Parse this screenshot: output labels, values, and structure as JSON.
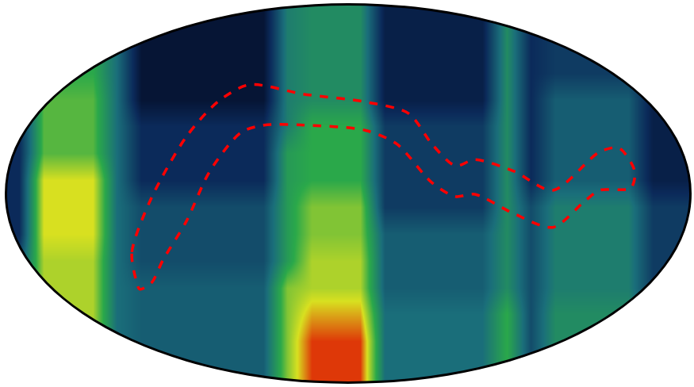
{
  "chart_data": {
    "type": "heatmap",
    "tick_labels": false,
    "grid": false,
    "xlim": [
      -0.5,
      27.5
    ],
    "ylim": [
      -0.5,
      13.5
    ],
    "xticks": [],
    "yticks": [],
    "zlim": [
      0,
      10
    ],
    "x": [
      0,
      1,
      2,
      3,
      4,
      5,
      6,
      7,
      8,
      9,
      10,
      11,
      12,
      13,
      14,
      15,
      16,
      17,
      18,
      19,
      20,
      21,
      22,
      23,
      24,
      25,
      26,
      27
    ],
    "y": [
      13,
      12,
      11,
      10,
      9,
      8,
      7,
      6,
      5,
      4,
      3,
      2,
      1,
      0
    ],
    "z": [
      [
        2,
        6,
        6,
        6,
        4,
        1,
        1,
        1,
        1,
        1,
        1,
        4.5,
        5,
        5,
        5,
        1.5,
        1.5,
        1.5,
        1.5,
        1.5,
        5,
        2,
        2.5,
        2.5,
        2.5,
        2.5,
        1.5,
        1.5
      ],
      [
        2,
        6,
        6,
        6,
        4,
        1,
        1,
        1,
        1,
        1,
        1,
        4.5,
        5,
        5,
        5,
        1.5,
        1.5,
        1.5,
        1.5,
        1.5,
        5,
        2,
        2.5,
        2.5,
        2.5,
        2.5,
        1.5,
        1.5
      ],
      [
        2,
        6,
        6,
        6,
        4,
        1,
        1,
        1,
        1,
        1,
        1,
        4.5,
        5,
        5,
        5,
        1.5,
        1.5,
        1.5,
        1.5,
        1.5,
        5,
        2,
        2.5,
        2.5,
        2.5,
        2.5,
        1.5,
        1.5
      ],
      [
        2,
        6.5,
        6.5,
        6.5,
        4,
        1,
        1,
        1,
        1,
        1,
        1,
        4.5,
        5,
        5,
        5,
        1.5,
        1.5,
        1.5,
        1.5,
        1.5,
        5,
        2,
        3.5,
        3.5,
        3.5,
        3.5,
        1.5,
        1.5
      ],
      [
        2,
        6.5,
        6.5,
        6.5,
        4,
        2,
        2,
        2,
        2,
        2,
        2,
        4.5,
        6,
        6,
        6,
        2.5,
        2.5,
        2.5,
        2.5,
        2.5,
        5,
        2,
        3.5,
        3.5,
        3.5,
        3.5,
        1.5,
        1.5
      ],
      [
        2,
        6.5,
        6.5,
        6.5,
        4,
        2,
        2,
        2,
        2,
        2,
        2,
        5.5,
        6,
        6,
        6,
        2.5,
        2.5,
        2.5,
        2.5,
        2.5,
        5,
        2,
        3.5,
        3.5,
        3.5,
        3.5,
        1.5,
        1.5
      ],
      [
        2,
        8,
        8,
        8,
        4,
        2,
        2,
        2,
        2,
        2,
        2,
        5.5,
        6,
        6,
        6,
        2.5,
        2.5,
        2.5,
        2.5,
        2.5,
        5,
        2,
        3.5,
        3.5,
        3.5,
        3.5,
        1.5,
        1.5
      ],
      [
        2,
        8,
        8,
        8,
        4,
        3,
        3,
        3,
        3,
        3,
        3,
        5.5,
        7,
        7,
        7,
        2.5,
        2.5,
        2.5,
        2.5,
        2.5,
        5,
        3,
        4.5,
        4.5,
        4.5,
        4.5,
        2.5,
        2.5
      ],
      [
        2,
        8,
        8,
        8,
        4,
        3,
        3,
        3,
        3,
        3,
        3,
        5.5,
        7,
        7,
        7,
        3.5,
        3.5,
        3.5,
        3.5,
        3.5,
        5,
        3,
        4.5,
        4.5,
        4.5,
        4.5,
        2.5,
        2.5
      ],
      [
        3,
        7.5,
        7.5,
        7.5,
        4,
        3,
        3,
        3,
        3,
        3,
        3,
        5.5,
        7.5,
        7.5,
        7.5,
        3.5,
        3.5,
        3.5,
        3.5,
        3.5,
        5,
        3,
        4.5,
        4.5,
        4.5,
        4.5,
        2.5,
        2.5
      ],
      [
        3,
        7.5,
        7.5,
        7.5,
        4,
        3.5,
        3.5,
        3.5,
        3.5,
        3.5,
        3.5,
        7,
        7.5,
        7.5,
        7.5,
        3.5,
        3.5,
        3.5,
        3.5,
        3.5,
        5,
        3,
        4.5,
        4.5,
        4.5,
        4.5,
        2.5,
        2.5
      ],
      [
        3,
        7.5,
        7.5,
        7.5,
        4,
        3.5,
        3.5,
        3.5,
        3.5,
        3.5,
        3.5,
        7,
        8.5,
        8.5,
        8.5,
        4,
        4,
        4,
        4,
        4,
        6,
        3,
        5,
        5,
        5,
        5,
        2.5,
        2.5
      ],
      [
        3,
        7.5,
        7.5,
        7.5,
        4,
        3.5,
        3.5,
        3.5,
        3.5,
        3.5,
        3.5,
        7,
        9.5,
        9.5,
        9.5,
        4,
        4,
        4,
        4,
        4,
        6,
        3,
        5,
        5,
        5,
        5,
        2.5,
        2.5
      ],
      [
        3,
        7.5,
        7.5,
        7.5,
        4,
        3.5,
        3.5,
        3.5,
        3.5,
        3.5,
        3.5,
        7,
        9.5,
        9.5,
        9.5,
        4,
        4,
        4,
        4,
        4,
        6,
        3,
        5,
        5,
        5,
        5,
        2.5,
        2.5
      ]
    ],
    "series": [
      {
        "type": "line",
        "color": "#ff0000",
        "line_style": "dash",
        "x": [
          4.78,
          4.62,
          5.42,
          6.86,
          8.14,
          9.42,
          11.66,
          14.22,
          15.98,
          16.94,
          17.9,
          18.7,
          20.3,
          21.9,
          23.82,
          24.62,
          25.26,
          25.1,
          23.82,
          23.18,
          21.9,
          20.3,
          18.7,
          17.9,
          16.94,
          15.5,
          14.22,
          11.66,
          10.06,
          9.1,
          7.82,
          6.86,
          5.9,
          5.42,
          4.94,
          4.78
        ],
        "y": [
          3.32,
          4.32,
          6.33,
          8.62,
          9.91,
          10.55,
          10.2,
          9.91,
          9.48,
          8.34,
          7.53,
          7.76,
          7.33,
          6.62,
          8.05,
          8.19,
          7.33,
          6.7,
          6.62,
          6.19,
          5.24,
          5.75,
          6.47,
          6.39,
          6.9,
          8.34,
          8.85,
          9.05,
          9.05,
          8.77,
          7.33,
          5.47,
          4.03,
          3.17,
          2.94,
          3.32
        ]
      }
    ]
  }
}
